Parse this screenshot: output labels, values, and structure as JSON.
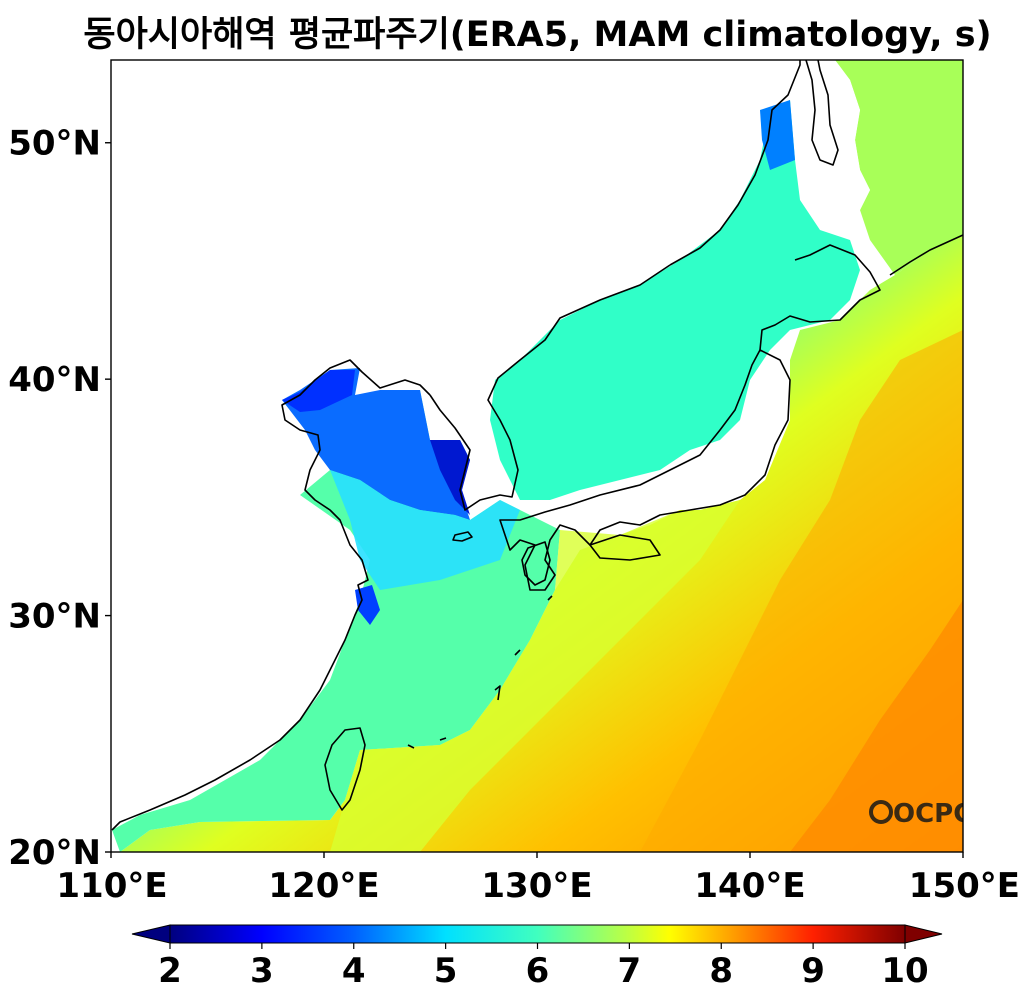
{
  "title": "동아시아해역 평균파주기(ERA5, MAM climatology, s)",
  "logo_text": "OCPC",
  "map": {
    "lon_range": [
      110,
      150
    ],
    "lat_range": [
      20,
      53.5
    ],
    "x_ticks": [
      {
        "value": 110,
        "label": "110°E"
      },
      {
        "value": 120,
        "label": "120°E"
      },
      {
        "value": 130,
        "label": "130°E"
      },
      {
        "value": 140,
        "label": "140°E"
      },
      {
        "value": 150,
        "label": "150°E"
      }
    ],
    "y_ticks": [
      {
        "value": 20,
        "label": "20°N"
      },
      {
        "value": 30,
        "label": "30°N"
      },
      {
        "value": 40,
        "label": "40°N"
      },
      {
        "value": 50,
        "label": "50°N"
      }
    ]
  },
  "colorbar": {
    "min": 2,
    "max": 10,
    "extend": "both",
    "ticks": [
      {
        "value": 2,
        "label": "2"
      },
      {
        "value": 3,
        "label": "3"
      },
      {
        "value": 4,
        "label": "4"
      },
      {
        "value": 5,
        "label": "5"
      },
      {
        "value": 6,
        "label": "6"
      },
      {
        "value": 7,
        "label": "7"
      },
      {
        "value": 8,
        "label": "8"
      },
      {
        "value": 9,
        "label": "9"
      },
      {
        "value": 10,
        "label": "10"
      }
    ],
    "colors": [
      "#00007f",
      "#0000ff",
      "#007fff",
      "#00ffff",
      "#7fff7f",
      "#ffff00",
      "#ff7f00",
      "#ff0000",
      "#7f0000"
    ]
  }
}
